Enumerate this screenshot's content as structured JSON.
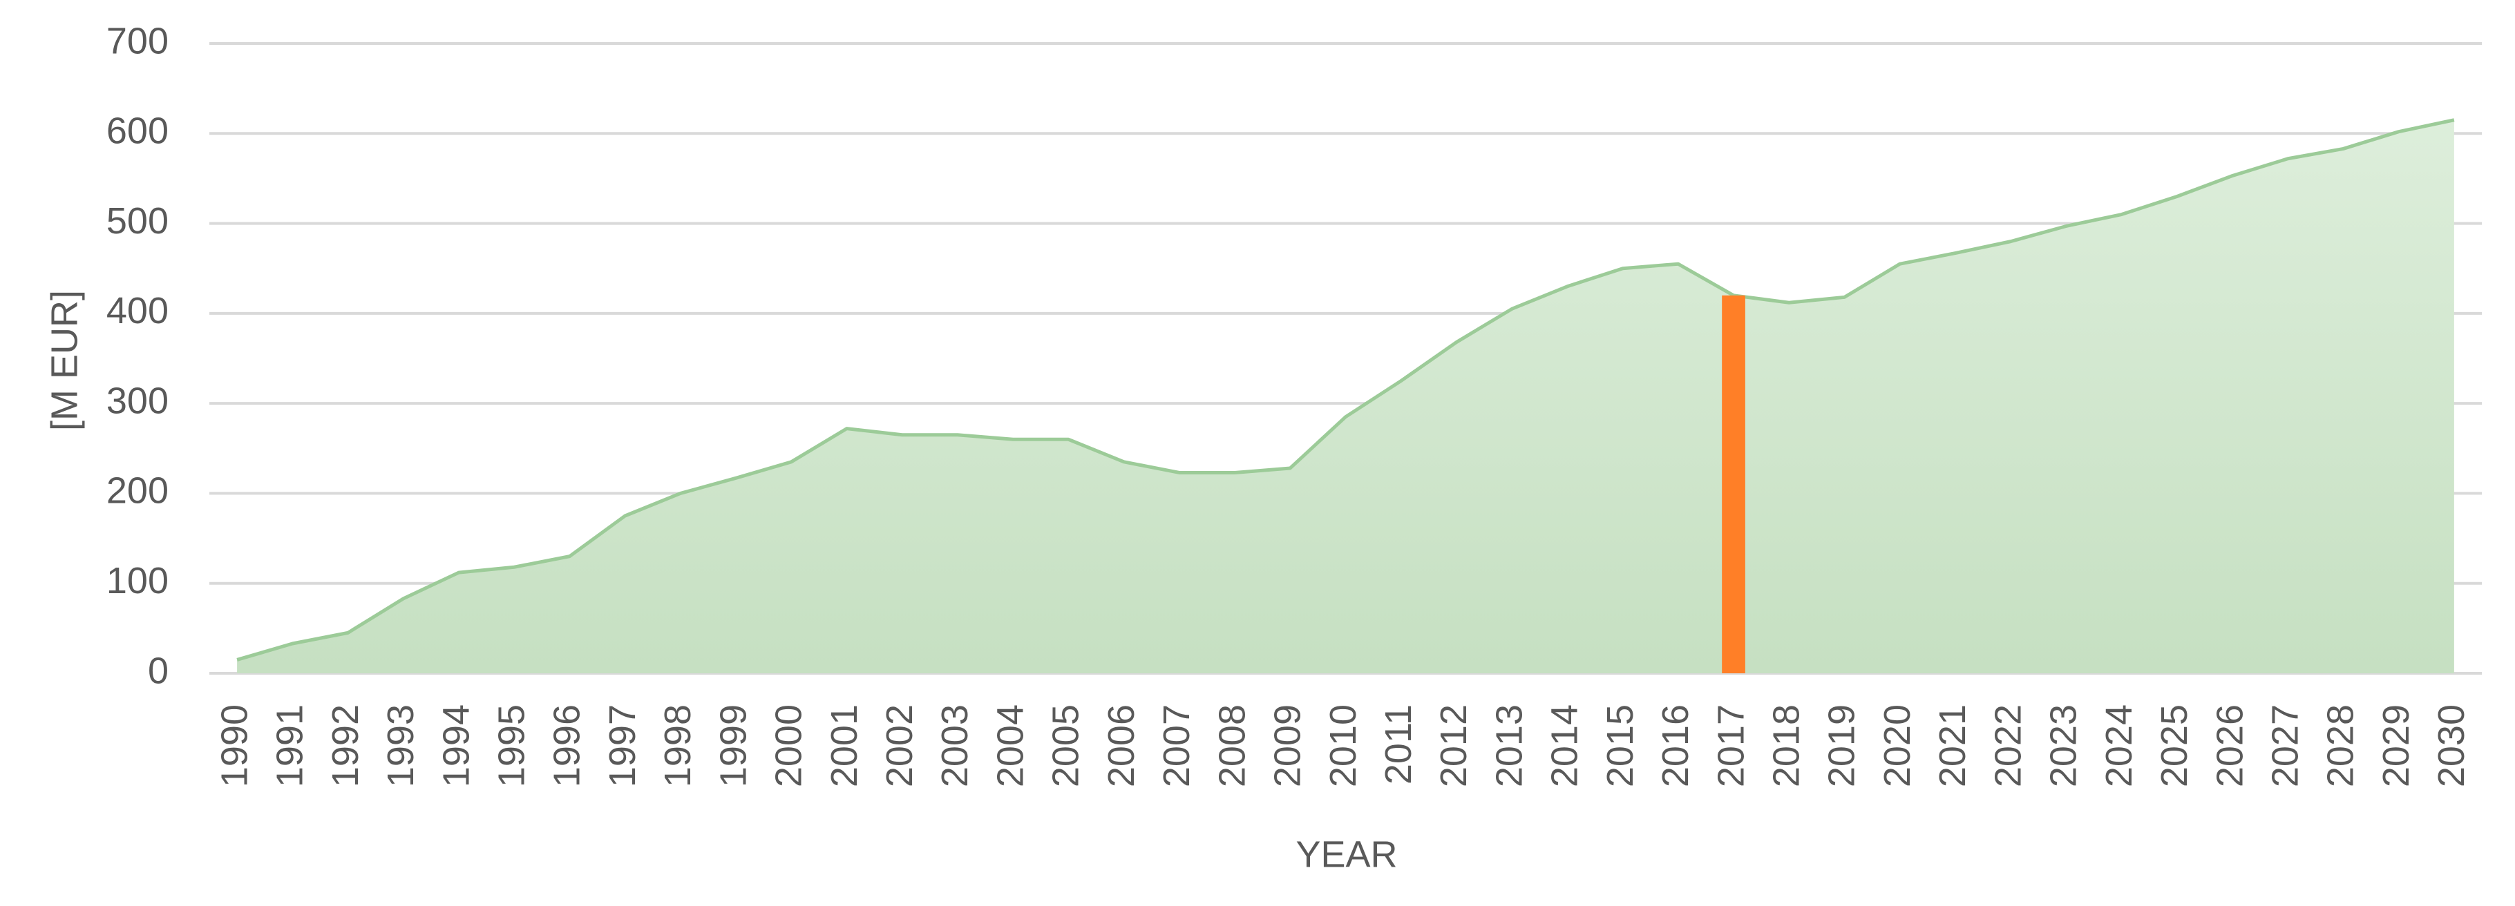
{
  "chart_data": {
    "type": "area",
    "x_label": "YEAR",
    "y_label": "[M EUR]",
    "categories": [
      "1990",
      "1991",
      "1992",
      "1993",
      "1994",
      "1995",
      "1996",
      "1997",
      "1998",
      "1999",
      "2000",
      "2001",
      "2002",
      "2003",
      "2004",
      "2005",
      "2006",
      "2007",
      "2008",
      "2009",
      "2010",
      "2011",
      "2012",
      "2013",
      "2014",
      "2015",
      "2016",
      "2017",
      "2018",
      "2019",
      "2020",
      "2021",
      "2022",
      "2023",
      "2024",
      "2025",
      "2026",
      "2027",
      "2028",
      "2029",
      "2030"
    ],
    "series": [
      {
        "type": "area",
        "color": "#c9e2c6",
        "line_color": "#9ccb98",
        "values": [
          15,
          33,
          45,
          83,
          112,
          118,
          130,
          175,
          200,
          217,
          235,
          272,
          265,
          265,
          260,
          260,
          235,
          223,
          223,
          228,
          285,
          325,
          368,
          405,
          430,
          450,
          455,
          420,
          412,
          418,
          455,
          467,
          480,
          497,
          510,
          530,
          553,
          572,
          583,
          602,
          615
        ]
      },
      {
        "type": "bar",
        "color": "#ff7f27",
        "values": [
          null,
          null,
          null,
          null,
          null,
          null,
          null,
          null,
          null,
          null,
          null,
          null,
          null,
          null,
          null,
          null,
          null,
          null,
          null,
          null,
          null,
          null,
          null,
          null,
          null,
          null,
          null,
          420,
          null,
          null,
          null,
          null,
          null,
          null,
          null,
          null,
          null,
          null,
          null,
          null,
          null
        ]
      }
    ],
    "ylim": [
      0,
      700
    ],
    "yticks": [
      0,
      100,
      200,
      300,
      400,
      500,
      600,
      700
    ],
    "grid": true
  }
}
